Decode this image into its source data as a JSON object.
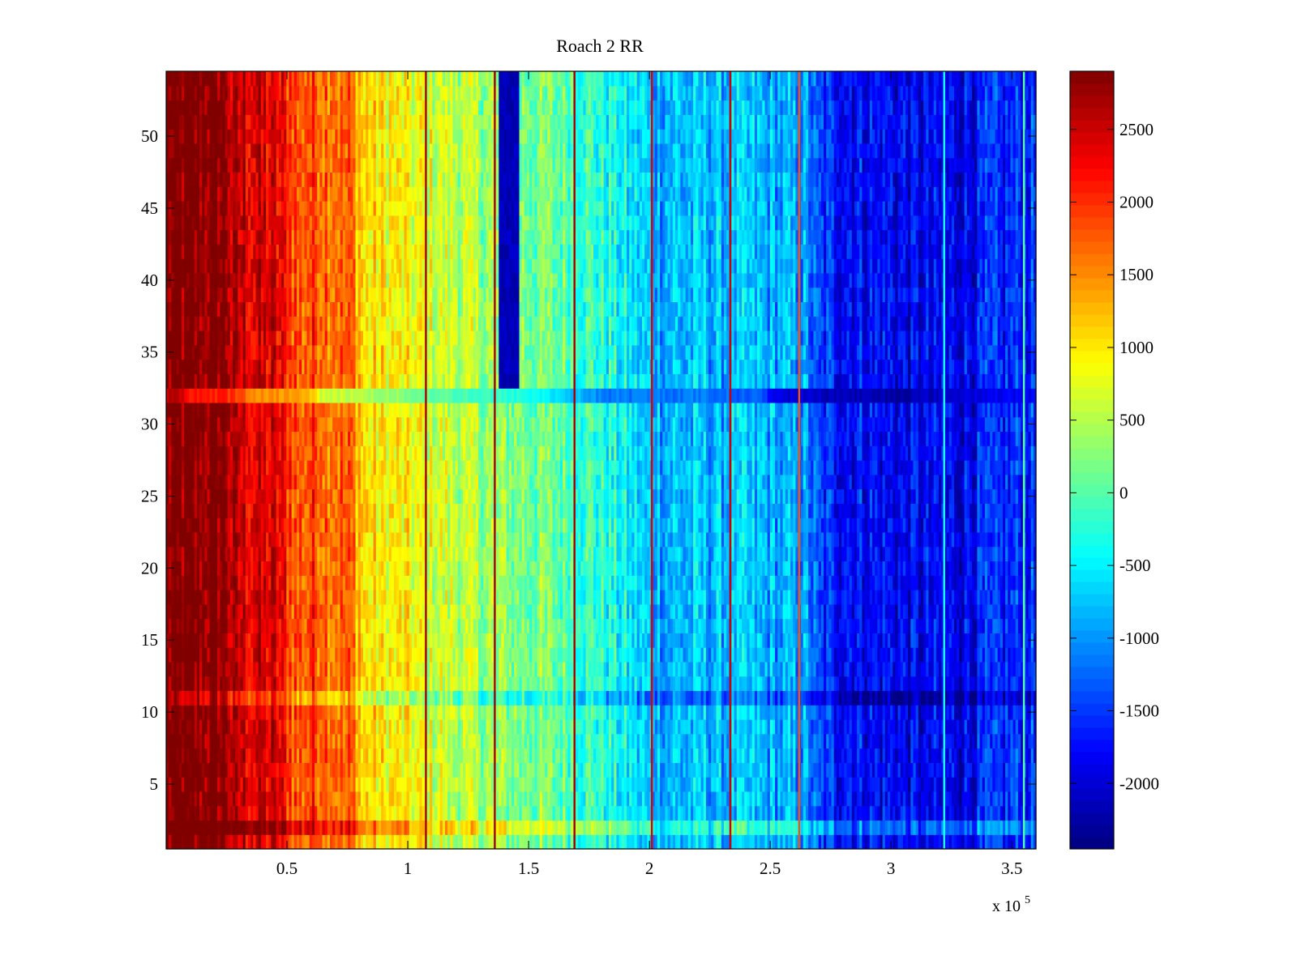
{
  "chart_data": {
    "type": "heatmap",
    "title": "Roach 2 RR",
    "xlabel": "",
    "ylabel": "",
    "x_multiplier_label": "x 10",
    "x_multiplier_exponent": "5",
    "xlim": [
      0,
      360000
    ],
    "ylim": [
      0.5,
      54.5
    ],
    "x_ticks": [
      50000,
      100000,
      150000,
      200000,
      250000,
      300000,
      350000
    ],
    "x_tick_labels": [
      "0.5",
      "1",
      "1.5",
      "2",
      "2.5",
      "3",
      "3.5"
    ],
    "y_ticks": [
      5,
      10,
      15,
      20,
      25,
      30,
      35,
      40,
      45,
      50
    ],
    "y_tick_labels": [
      "5",
      "10",
      "15",
      "20",
      "25",
      "30",
      "35",
      "40",
      "45",
      "50"
    ],
    "colorbar": {
      "colormap": "jet",
      "clim": [
        -2450,
        2900
      ],
      "ticks": [
        2500,
        2000,
        1500,
        1000,
        500,
        0,
        -500,
        -1000,
        -1500,
        -2000
      ],
      "tick_labels": [
        "2500",
        "2000",
        "1500",
        "1000",
        "500",
        "0",
        "-500",
        "-1000",
        "-1500",
        "-2000"
      ]
    },
    "rows": 54,
    "column_profile": {
      "x": [
        0,
        25000,
        27000,
        45000,
        50000,
        55000,
        62000,
        78000,
        82000,
        95000,
        110000,
        130000,
        150000,
        170000,
        190000,
        200000,
        240000,
        265000,
        270000,
        290000,
        320000,
        360000
      ],
      "value": [
        2900,
        2900,
        2550,
        2350,
        2100,
        1750,
        1900,
        1600,
        1000,
        900,
        700,
        400,
        200,
        0,
        -500,
        -800,
        -800,
        -1000,
        -1550,
        -1750,
        -1900,
        -1500
      ]
    },
    "vertical_streaks": [
      {
        "x": 107500,
        "value": 2700
      },
      {
        "x": 136000,
        "value": 2700
      },
      {
        "x": 169000,
        "value": 2700
      },
      {
        "x": 201000,
        "value": 2400
      },
      {
        "x": 233500,
        "value": 2500
      },
      {
        "x": 262000,
        "value": 1800
      },
      {
        "x": 322000,
        "value": -300
      },
      {
        "x": 355000,
        "value": 0
      }
    ],
    "band_anomalies": [
      {
        "row": 32,
        "effect": "shifted"
      },
      {
        "row": 11,
        "effect": "darker"
      },
      {
        "row": 2,
        "effect": "lighter"
      }
    ]
  }
}
